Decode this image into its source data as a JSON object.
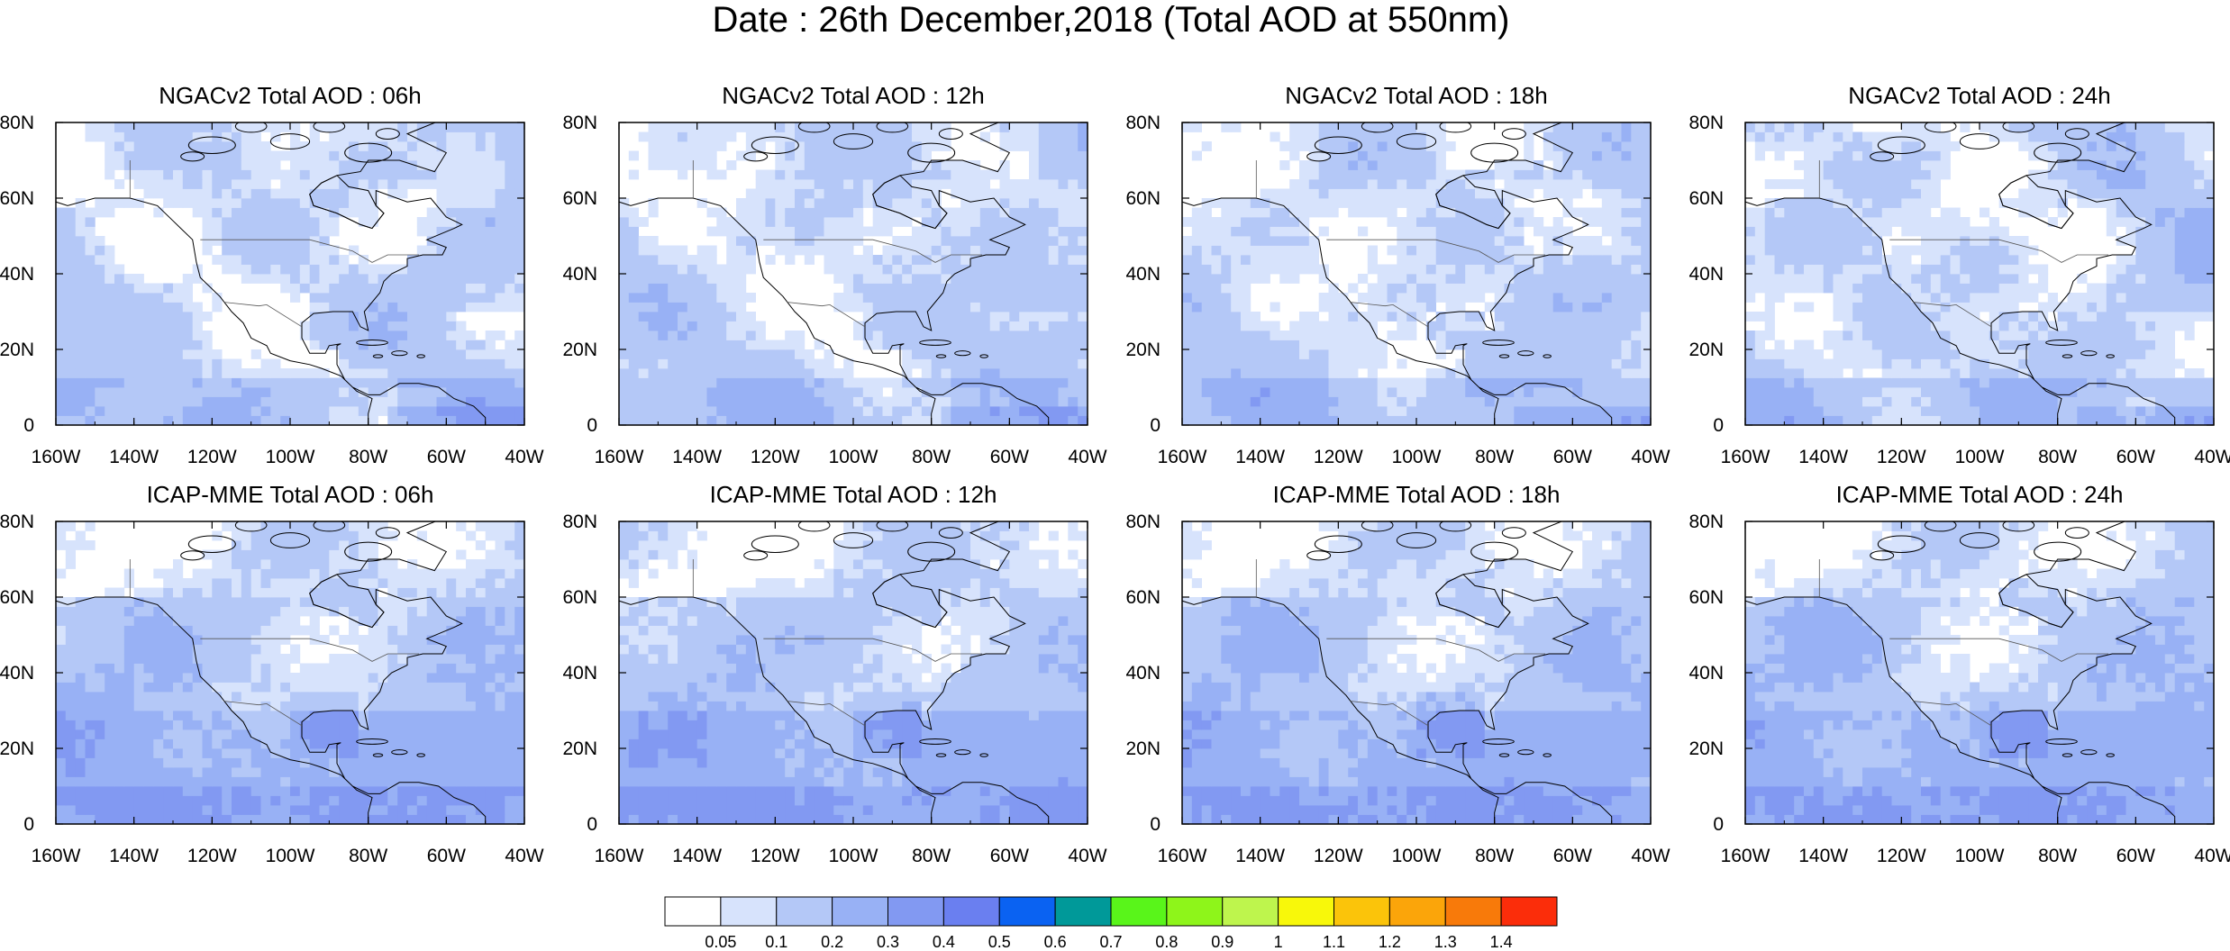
{
  "title": "Date : 26th December,2018 (Total AOD at 550nm)",
  "panels": [
    {
      "title": "NGACv2 Total AOD : 06h",
      "row": 0,
      "col": 0,
      "variant": "ngac",
      "seed": 11
    },
    {
      "title": "NGACv2 Total AOD : 12h",
      "row": 0,
      "col": 1,
      "variant": "ngac",
      "seed": 23
    },
    {
      "title": "NGACv2 Total AOD : 18h",
      "row": 0,
      "col": 2,
      "variant": "ngac",
      "seed": 37
    },
    {
      "title": "NGACv2 Total AOD : 24h",
      "row": 0,
      "col": 3,
      "variant": "ngac",
      "seed": 41
    },
    {
      "title": "ICAP-MME Total AOD : 06h",
      "row": 1,
      "col": 0,
      "variant": "icap",
      "seed": 53
    },
    {
      "title": "ICAP-MME Total AOD : 12h",
      "row": 1,
      "col": 1,
      "variant": "icap",
      "seed": 67
    },
    {
      "title": "ICAP-MME Total AOD : 18h",
      "row": 1,
      "col": 2,
      "variant": "icap",
      "seed": 71
    },
    {
      "title": "ICAP-MME Total AOD : 24h",
      "row": 1,
      "col": 3,
      "variant": "icap",
      "seed": 89
    }
  ],
  "map": {
    "lon_range": [
      -160,
      -40
    ],
    "lat_range": [
      0,
      80
    ],
    "lon_ticks": [
      "160W",
      "140W",
      "120W",
      "100W",
      "80W",
      "60W",
      "40W"
    ],
    "lat_ticks": [
      "0",
      "20N",
      "40N",
      "60N",
      "80N"
    ]
  },
  "colorbar": {
    "colors": [
      "#ffffff",
      "#d7e3fc",
      "#b4c8f7",
      "#98b1f5",
      "#8299f2",
      "#6a7ff0",
      "#0a62f2",
      "#009999",
      "#59f51a",
      "#8ef51a",
      "#bef54d",
      "#f8f80a",
      "#fbc40a",
      "#fba50a",
      "#f87a0a",
      "#fb2d0a"
    ],
    "labels": [
      "0.05",
      "0.1",
      "0.2",
      "0.3",
      "0.4",
      "0.5",
      "0.6",
      "0.7",
      "0.8",
      "0.9",
      "1",
      "1.1",
      "1.2",
      "1.3",
      "1.4"
    ]
  }
}
